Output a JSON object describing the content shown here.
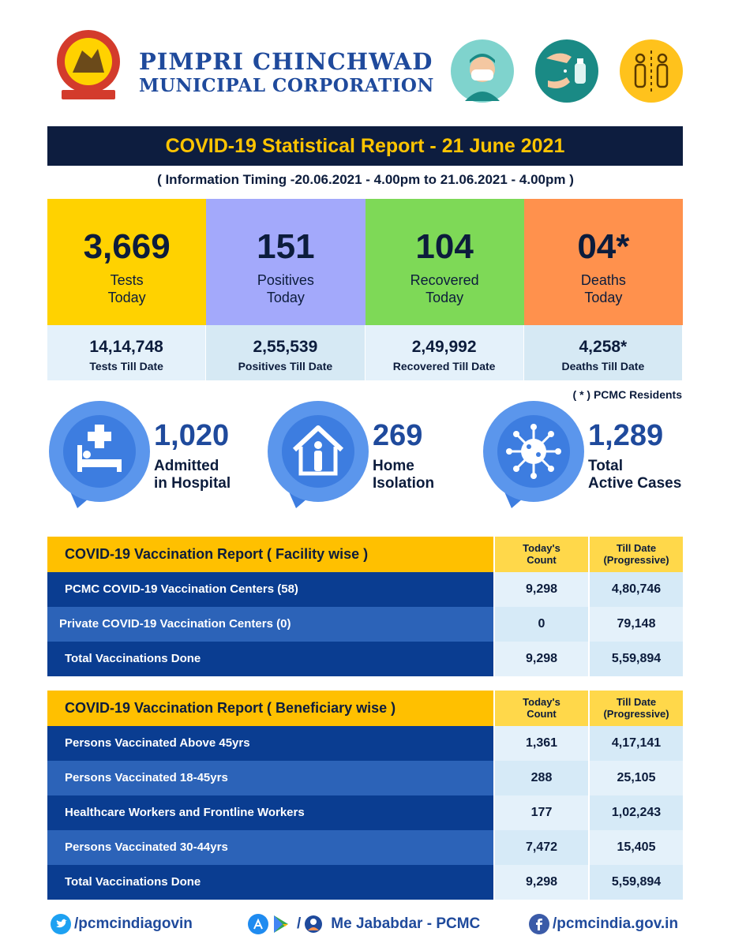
{
  "header": {
    "org_line1": "PIMPRI CHINCHWAD",
    "org_line2": "MUNICIPAL CORPORATION",
    "icons": [
      "mask-icon",
      "hand-sanitizer-icon",
      "social-distancing-icon"
    ],
    "colors": {
      "brand_blue": "#1f4a9c",
      "navy": "#0d1d3f",
      "gold": "#ffc400",
      "teal": "#7fd3cd",
      "dark_teal": "#1a8a85",
      "amber": "#ffc21c"
    }
  },
  "report": {
    "title": "COVID-19 Statistical Report - 21 June 2021",
    "timing": "( Information Timing -20.06.2021 - 4.00pm to 21.06.2021 - 4.00pm )"
  },
  "stats": [
    {
      "value": "3,669",
      "label1": "Tests",
      "label2": "Today",
      "total": "14,14,748",
      "total_label": "Tests Till Date",
      "color": "#ffd200"
    },
    {
      "value": "151",
      "label1": "Positives",
      "label2": "Today",
      "total": "2,55,539",
      "total_label": "Positives Till Date",
      "color": "#a3a9fb"
    },
    {
      "value": "104",
      "label1": "Recovered",
      "label2": "Today",
      "total": "2,49,992",
      "total_label": "Recovered Till Date",
      "color": "#7ed957"
    },
    {
      "value": "04*",
      "label1": "Deaths",
      "label2": "Today",
      "total": "4,258*",
      "total_label": "Deaths Till Date",
      "color": "#ff914d"
    }
  ],
  "note": "( * ) PCMC Residents",
  "pins": [
    {
      "icon": "hospital-bed-icon",
      "value": "1,020",
      "label1": "Admitted",
      "label2": "in Hospital"
    },
    {
      "icon": "home-isolation-icon",
      "value": "269",
      "label1": "Home",
      "label2": "Isolation"
    },
    {
      "icon": "virus-icon",
      "value": "1,289",
      "label1": "Total",
      "label2": "Active Cases"
    }
  ],
  "facility_table": {
    "title": "COVID-19 Vaccination Report ( Facility wise )",
    "col1": [
      "Today's",
      "Count"
    ],
    "col2": [
      "Till Date",
      "(Progressive)"
    ],
    "rows": [
      {
        "label": "PCMC COVID-19 Vaccination Centers (58)",
        "today": "9,298",
        "till": "4,80,746"
      },
      {
        "label": "Private COVID-19 Vaccination Centers (0)",
        "today": "0",
        "till": "79,148"
      },
      {
        "label": "Total Vaccinations Done",
        "today": "9,298",
        "till": "5,59,894"
      }
    ]
  },
  "beneficiary_table": {
    "title": "COVID-19 Vaccination Report ( Beneficiary wise )",
    "col1": [
      "Today's",
      "Count"
    ],
    "col2": [
      "Till Date",
      "(Progressive)"
    ],
    "rows": [
      {
        "label": "Persons Vaccinated Above 45yrs",
        "today": "1,361",
        "till": "4,17,141"
      },
      {
        "label": "Persons Vaccinated 18-45yrs",
        "today": "288",
        "till": "25,105"
      },
      {
        "label": "Healthcare Workers and Frontline Workers",
        "today": "177",
        "till": "1,02,243"
      },
      {
        "label": "Persons Vaccinated 30-44yrs",
        "today": "7,472",
        "till": "15,405"
      },
      {
        "label": "Total Vaccinations Done",
        "today": "9,298",
        "till": "5,59,894"
      }
    ]
  },
  "footer": {
    "twitter": "/pcmcindiagovin",
    "app_sep": "/",
    "app": "Me Jababdar - PCMC",
    "facebook": "/pcmcindia.gov.in"
  }
}
